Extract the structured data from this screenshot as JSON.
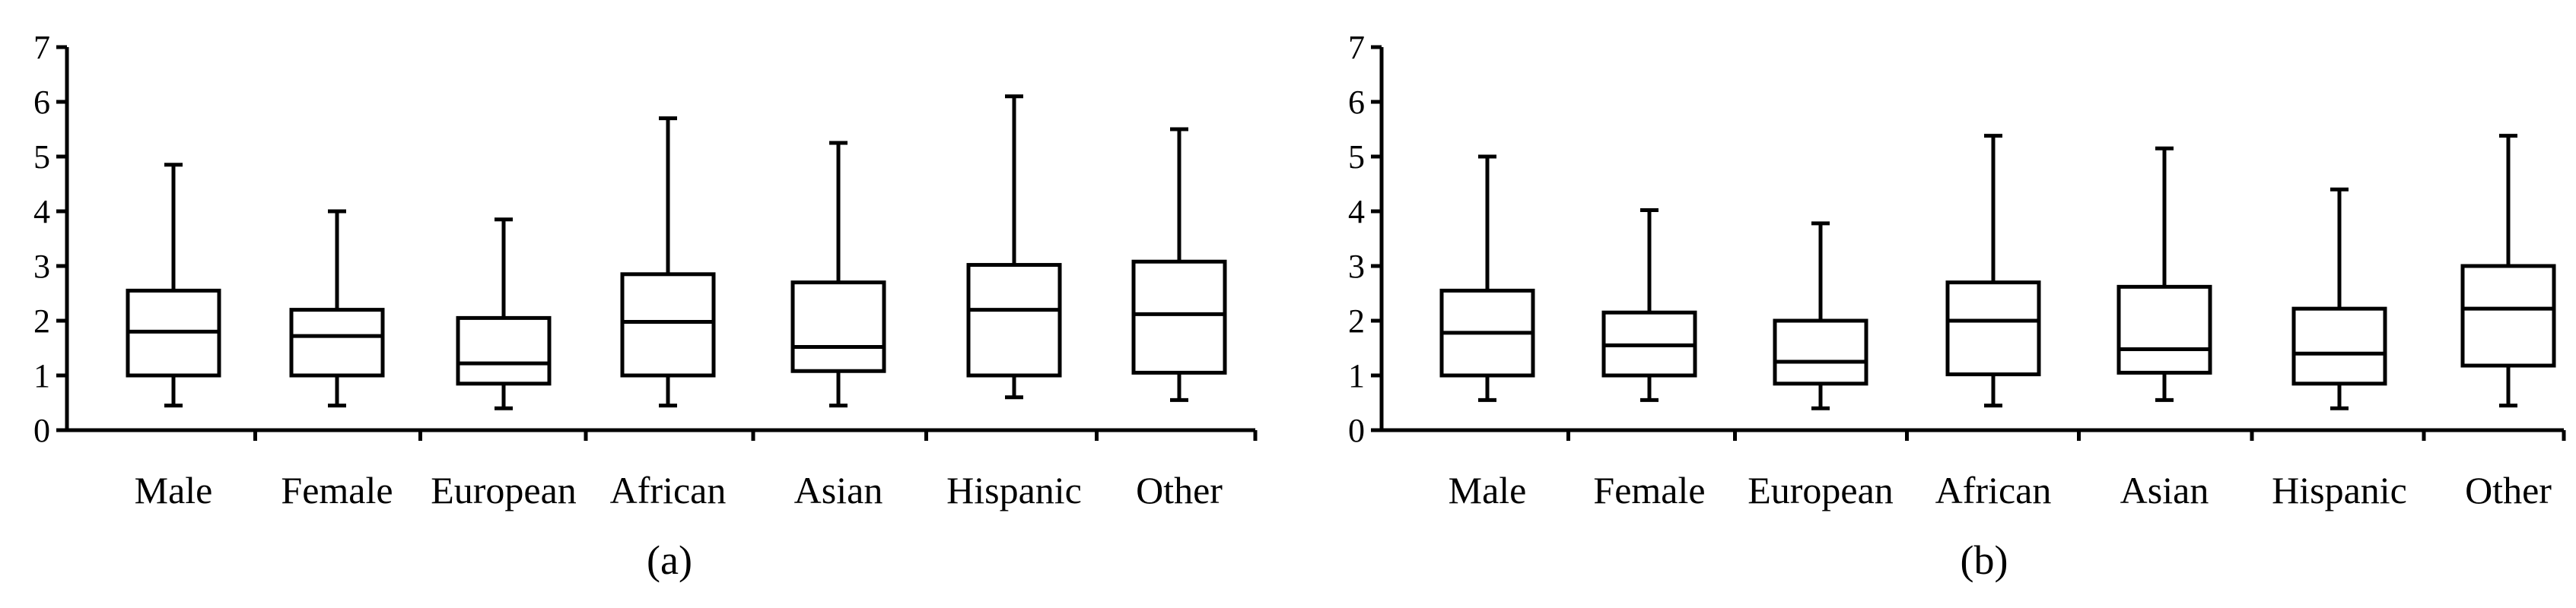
{
  "colors": {
    "stroke": "#000000",
    "background": "#ffffff"
  },
  "chart_data": [
    {
      "type": "box",
      "panel_label": "(a)",
      "ylim": [
        0,
        7
      ],
      "yticks": [
        "0",
        "1",
        "2",
        "3",
        "4",
        "5",
        "6",
        "7"
      ],
      "grid": false,
      "categories": [
        "Male",
        "Female",
        "European",
        "African",
        "Asian",
        "Hispanic",
        "Other"
      ],
      "boxes": [
        {
          "min": 0.45,
          "q1": 1.0,
          "median": 1.8,
          "q3": 2.55,
          "max": 4.85
        },
        {
          "min": 0.45,
          "q1": 1.0,
          "median": 1.72,
          "q3": 2.2,
          "max": 4.0
        },
        {
          "min": 0.4,
          "q1": 0.85,
          "median": 1.22,
          "q3": 2.05,
          "max": 3.85
        },
        {
          "min": 0.45,
          "q1": 1.0,
          "median": 1.98,
          "q3": 2.85,
          "max": 5.7
        },
        {
          "min": 0.45,
          "q1": 1.08,
          "median": 1.52,
          "q3": 2.7,
          "max": 5.25
        },
        {
          "min": 0.6,
          "q1": 1.0,
          "median": 2.2,
          "q3": 3.02,
          "max": 6.1
        },
        {
          "min": 0.55,
          "q1": 1.05,
          "median": 2.12,
          "q3": 3.08,
          "max": 5.5
        }
      ]
    },
    {
      "type": "box",
      "panel_label": "(b)",
      "ylim": [
        0,
        7
      ],
      "yticks": [
        "0",
        "1",
        "2",
        "3",
        "4",
        "5",
        "6",
        "7"
      ],
      "grid": false,
      "categories": [
        "Male",
        "Female",
        "European",
        "African",
        "Asian",
        "Hispanic",
        "Other"
      ],
      "boxes": [
        {
          "min": 0.55,
          "q1": 1.0,
          "median": 1.78,
          "q3": 2.55,
          "max": 5.0
        },
        {
          "min": 0.55,
          "q1": 1.0,
          "median": 1.55,
          "q3": 2.15,
          "max": 4.02
        },
        {
          "min": 0.4,
          "q1": 0.85,
          "median": 1.25,
          "q3": 2.0,
          "max": 3.78
        },
        {
          "min": 0.45,
          "q1": 1.02,
          "median": 2.0,
          "q3": 2.7,
          "max": 5.38
        },
        {
          "min": 0.55,
          "q1": 1.05,
          "median": 1.48,
          "q3": 2.62,
          "max": 5.15
        },
        {
          "min": 0.4,
          "q1": 0.85,
          "median": 1.4,
          "q3": 2.22,
          "max": 4.4
        },
        {
          "min": 0.45,
          "q1": 1.18,
          "median": 2.22,
          "q3": 3.0,
          "max": 5.38
        }
      ]
    }
  ]
}
